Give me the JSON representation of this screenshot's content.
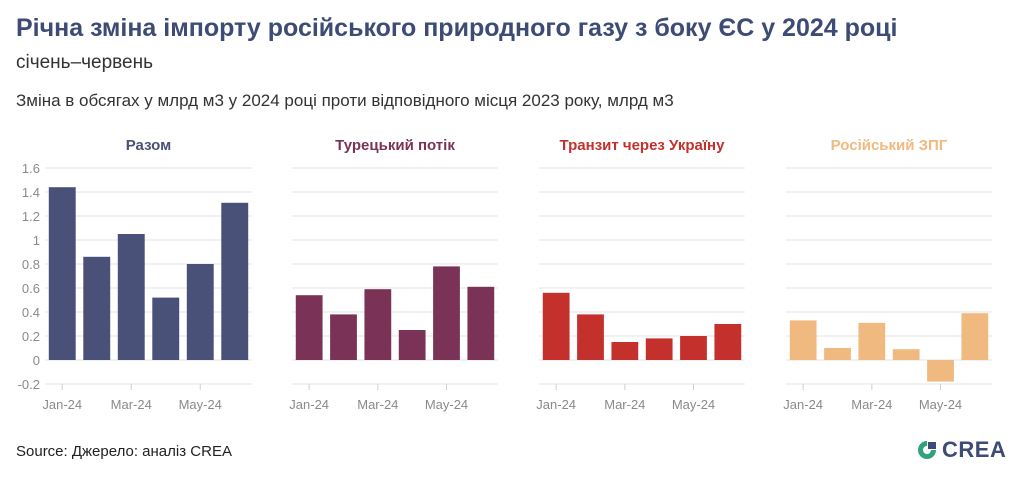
{
  "title": "Річна зміна імпорту російського природного газу з боку ЄС у 2024 році",
  "subtitle": "січень–червень",
  "description": "Зміна в обсягах у млрд м3 у 2024 році проти відповідного місця 2023 року, млрд м3",
  "source": "Source: Джерело: аналіз CREA",
  "logo_text": "CREA",
  "colors": {
    "grid": "#e6e6e6",
    "axis_text": "#8a8a8a",
    "logo_green": "#2fa37a",
    "logo_blue": "#3d4b75"
  },
  "chart_data": [
    {
      "type": "bar",
      "title": "Разом",
      "color": "#4a5178",
      "categories": [
        "Jan-24",
        "Feb-24",
        "Mar-24",
        "Apr-24",
        "May-24",
        "Jun-24"
      ],
      "tick_labels": [
        "Jan-24",
        "Mar-24",
        "May-24"
      ],
      "values": [
        1.44,
        0.86,
        1.05,
        0.52,
        0.8,
        1.31
      ],
      "ylim": [
        -0.2,
        1.6
      ],
      "yticks": [
        -0.2,
        0,
        0.2,
        0.4,
        0.6,
        0.8,
        1,
        1.2,
        1.4,
        1.6
      ],
      "ytick_labels": [
        "-0.2",
        "0",
        "0.2",
        "0.4",
        "0.6",
        "0.8",
        "1",
        "1.2",
        "1.4",
        "1.6"
      ]
    },
    {
      "type": "bar",
      "title": "Турецький потік",
      "color": "#7a3356",
      "categories": [
        "Jan-24",
        "Feb-24",
        "Mar-24",
        "Apr-24",
        "May-24",
        "Jun-24"
      ],
      "tick_labels": [
        "Jan-24",
        "Mar-24",
        "May-24"
      ],
      "values": [
        0.54,
        0.38,
        0.59,
        0.25,
        0.78,
        0.61
      ],
      "ylim": [
        -0.2,
        1.6
      ]
    },
    {
      "type": "bar",
      "title": "Транзит через Україну",
      "color": "#c4302b",
      "categories": [
        "Jan-24",
        "Feb-24",
        "Mar-24",
        "Apr-24",
        "May-24",
        "Jun-24"
      ],
      "tick_labels": [
        "Jan-24",
        "Mar-24",
        "May-24"
      ],
      "values": [
        0.56,
        0.38,
        0.15,
        0.18,
        0.2,
        0.3
      ],
      "ylim": [
        -0.2,
        1.6
      ]
    },
    {
      "type": "bar",
      "title": "Російський ЗПГ",
      "color": "#f0b97f",
      "categories": [
        "Jan-24",
        "Feb-24",
        "Mar-24",
        "Apr-24",
        "May-24",
        "Jun-24"
      ],
      "tick_labels": [
        "Jan-24",
        "Mar-24",
        "May-24"
      ],
      "values": [
        0.33,
        0.1,
        0.31,
        0.09,
        -0.18,
        0.39
      ],
      "ylim": [
        -0.2,
        1.6
      ]
    }
  ]
}
